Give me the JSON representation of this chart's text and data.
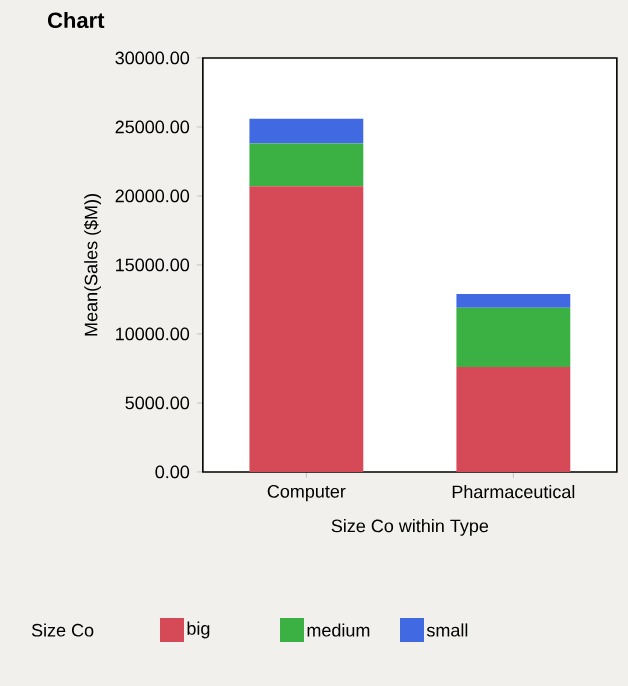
{
  "chart_data": {
    "type": "bar",
    "title": "Chart",
    "xlabel": "Size Co within Type",
    "ylabel": "Mean(Sales ($M))",
    "legend_title": "Size Co",
    "legend": "bottom",
    "stacked": true,
    "categories": [
      "Computer",
      "Pharmaceutical"
    ],
    "series": [
      {
        "name": "big",
        "color": "#d64a58",
        "values": [
          20700,
          7600
        ]
      },
      {
        "name": "medium",
        "color": "#3bb143",
        "values": [
          3100,
          4300
        ]
      },
      {
        "name": "small",
        "color": "#4169e1",
        "values": [
          1800,
          1000
        ]
      }
    ],
    "ylim": [
      0,
      30000
    ],
    "yticks": [
      {
        "value": 0,
        "label": "0.00"
      },
      {
        "value": 5000,
        "label": "5000.00"
      },
      {
        "value": 10000,
        "label": "10000.00"
      },
      {
        "value": 15000,
        "label": "15000.00"
      },
      {
        "value": 20000,
        "label": "20000.00"
      },
      {
        "value": 25000,
        "label": "25000.00"
      },
      {
        "value": 30000,
        "label": "30000.00"
      }
    ]
  }
}
